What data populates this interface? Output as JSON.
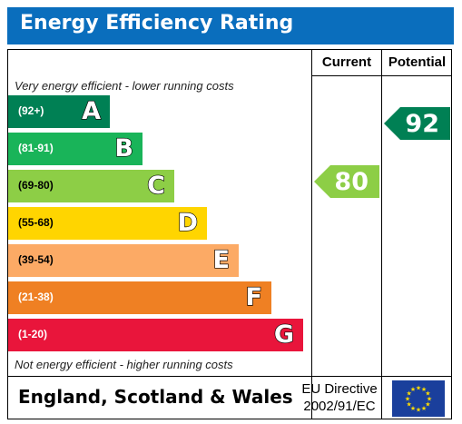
{
  "header": {
    "title": "Energy Efficiency Rating"
  },
  "columns": {
    "current": "Current",
    "potential": "Potential"
  },
  "notes": {
    "top": "Very energy efficient - lower running costs",
    "bottom": "Not energy efficient - higher running costs"
  },
  "chart_data": {
    "type": "bar",
    "title": "Energy Efficiency Rating",
    "categories": [
      "A",
      "B",
      "C",
      "D",
      "E",
      "F",
      "G"
    ],
    "bands": [
      {
        "letter": "A",
        "range": "(92+)",
        "color": "#008054"
      },
      {
        "letter": "B",
        "range": "(81-91)",
        "color": "#19b459"
      },
      {
        "letter": "C",
        "range": "(69-80)",
        "color": "#8dce46"
      },
      {
        "letter": "D",
        "range": "(55-68)",
        "color": "#ffd500"
      },
      {
        "letter": "E",
        "range": "(39-54)",
        "color": "#fcaa65"
      },
      {
        "letter": "F",
        "range": "(21-38)",
        "color": "#ef8023"
      },
      {
        "letter": "G",
        "range": "(1-20)",
        "color": "#e9153b"
      }
    ],
    "current": {
      "value": 80,
      "band": "C",
      "color": "#8dce46"
    },
    "potential": {
      "value": 92,
      "band": "A",
      "color": "#008054"
    }
  },
  "footer": {
    "country": "England, Scotland & Wales",
    "directive_line1": "EU Directive",
    "directive_line2": "2002/91/EC"
  }
}
